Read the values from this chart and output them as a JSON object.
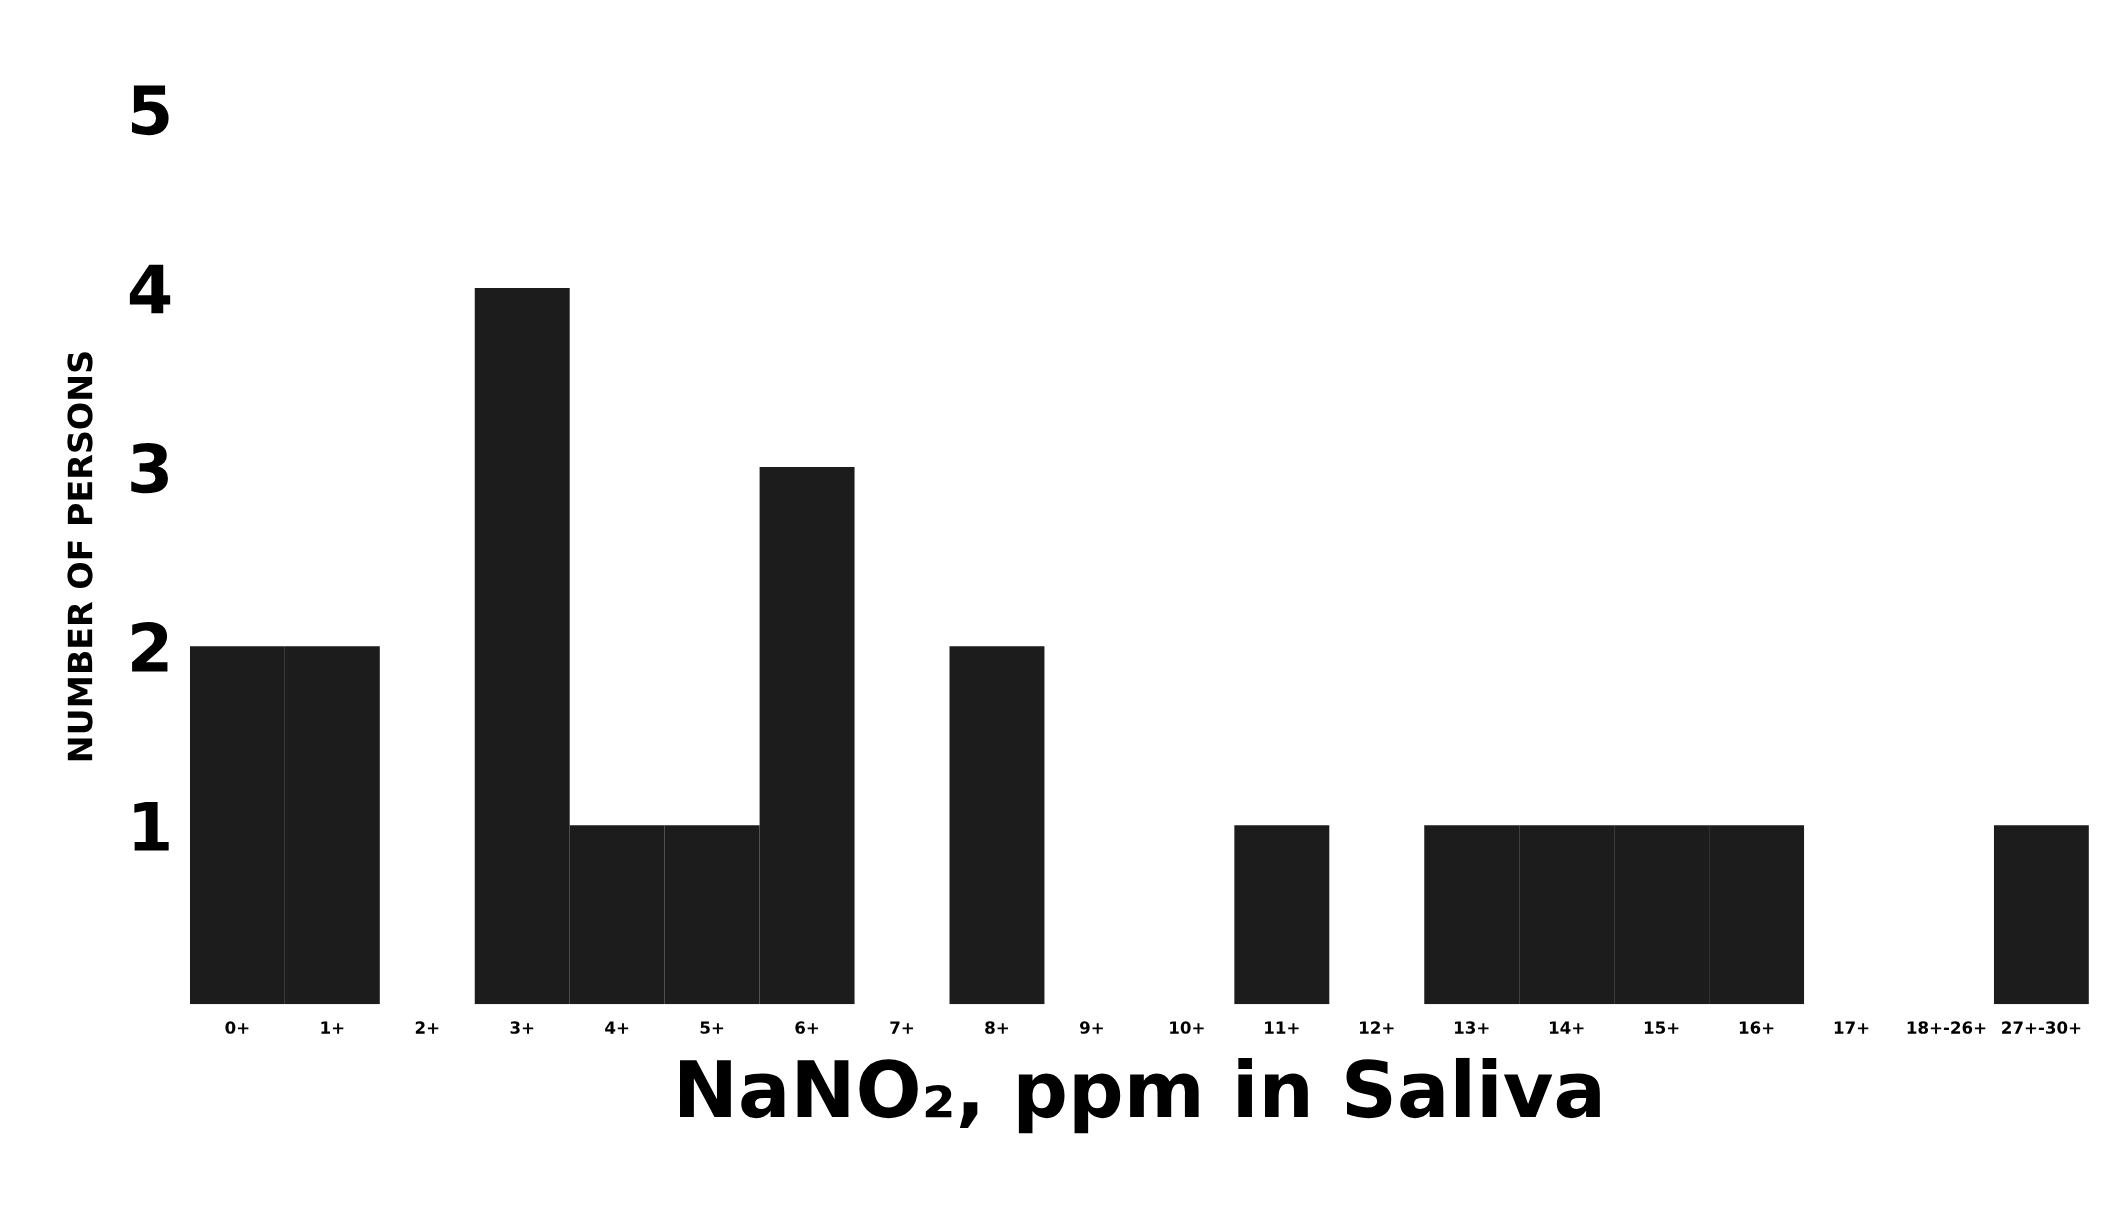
{
  "chart_data": {
    "type": "bar",
    "xlabel": "NaNO₂, ppm in Saliva",
    "ylabel": "NUMBER OF PERSONS",
    "categories": [
      "0+",
      "1+",
      "2+",
      "3+",
      "4+",
      "5+",
      "6+",
      "7+",
      "8+",
      "9+",
      "10+",
      "11+",
      "12+",
      "13+",
      "14+",
      "15+",
      "16+",
      "17+",
      "18+-26+",
      "27+-30+"
    ],
    "values": [
      2,
      2,
      null,
      4,
      1,
      1,
      3,
      null,
      2,
      null,
      null,
      1,
      null,
      1,
      1,
      1,
      1,
      null,
      null,
      1
    ],
    "color": "#1c1c1c",
    "ylim": [
      0,
      5
    ],
    "yticks": [
      1,
      2,
      3,
      4,
      5
    ],
    "grid": false
  }
}
